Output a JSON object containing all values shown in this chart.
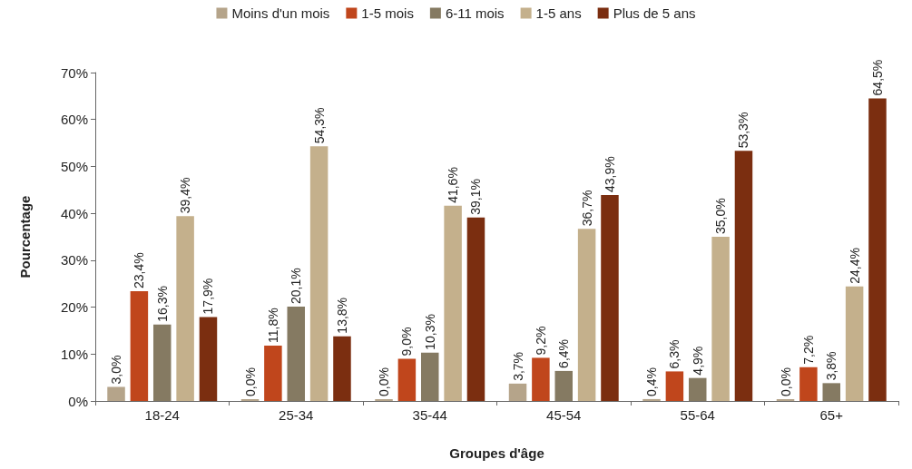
{
  "chart_data": {
    "type": "bar",
    "xlabel": "Groupes d'âge",
    "ylabel": "Pourcentage",
    "categories": [
      "18-24",
      "25-34",
      "35-44",
      "45-54",
      "55-64",
      "65+"
    ],
    "series": [
      {
        "name": "Moins d'un mois",
        "color": "#b5a48a",
        "values": [
          3.0,
          0.0,
          0.0,
          3.7,
          0.4,
          0.0
        ],
        "value_labels": [
          "3,0%",
          "0,0%",
          "0,0%",
          "3,7%",
          "0,4%",
          "0,0%"
        ]
      },
      {
        "name": "1-5 mois",
        "color": "#c0461c",
        "values": [
          23.4,
          11.8,
          9.0,
          9.2,
          6.3,
          7.2
        ],
        "value_labels": [
          "23,4%",
          "11,8%",
          "9,0%",
          "9,2%",
          "6,3%",
          "7,2%"
        ]
      },
      {
        "name": "6-11 mois",
        "color": "#857a62",
        "values": [
          16.3,
          20.1,
          10.3,
          6.4,
          4.9,
          3.8
        ],
        "value_labels": [
          "16,3%",
          "20,1%",
          "10,3%",
          "6,4%",
          "4,9%",
          "3,8%"
        ]
      },
      {
        "name": "1-5 ans",
        "color": "#c4b08c",
        "values": [
          39.4,
          54.3,
          41.6,
          36.7,
          35.0,
          24.4
        ],
        "value_labels": [
          "39,4%",
          "54,3%",
          "41,6%",
          "36,7%",
          "35,0%",
          "24,4%"
        ]
      },
      {
        "name": "Plus de 5 ans",
        "color": "#7b2e10",
        "values": [
          17.9,
          13.8,
          39.1,
          43.9,
          53.3,
          64.5
        ],
        "value_labels": [
          "17,9%",
          "13,8%",
          "39,1%",
          "43,9%",
          "53,3%",
          "64,5%"
        ]
      }
    ],
    "ylim": [
      0,
      70
    ],
    "yticks": [
      {
        "value": 0,
        "label": "0%"
      },
      {
        "value": 10,
        "label": "10%"
      },
      {
        "value": 20,
        "label": "20%"
      },
      {
        "value": 30,
        "label": "30%"
      },
      {
        "value": 40,
        "label": "40%"
      },
      {
        "value": 50,
        "label": "50%"
      },
      {
        "value": 60,
        "label": "60%"
      },
      {
        "value": 70,
        "label": "70%"
      }
    ],
    "legend": "top"
  }
}
